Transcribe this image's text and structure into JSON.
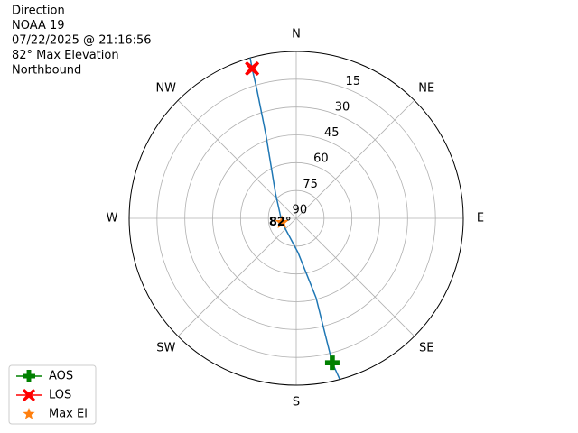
{
  "chart_data": {
    "type": "polar",
    "title_lines": [
      "Direction",
      "NOAA 19",
      "07/22/2025 @ 21:16:56",
      "82° Max Elevation",
      "Northbound"
    ],
    "thetaticks": [
      {
        "value": 0,
        "label": "N"
      },
      {
        "value": 45,
        "label": "NE"
      },
      {
        "value": 90,
        "label": "E"
      },
      {
        "value": 135,
        "label": "SE"
      },
      {
        "value": 180,
        "label": "S"
      },
      {
        "value": 225,
        "label": "SW"
      },
      {
        "value": 270,
        "label": "W"
      },
      {
        "value": 315,
        "label": "NW"
      }
    ],
    "rlim": [
      90,
      0
    ],
    "rticks": [
      15,
      30,
      45,
      60,
      75,
      90
    ],
    "grid": true,
    "legend": "lower left",
    "track": {
      "color": "#1f77b4",
      "azimuth": [
        164.9,
        166,
        166,
        177,
        254,
        320,
        340,
        343,
        343.6,
        344
      ],
      "elevation": [
        0.3,
        9.7,
        45.9,
        71.5,
        82,
        72.7,
        42.5,
        18,
        5.8,
        0
      ]
    },
    "series": [
      {
        "name": "AOS",
        "color": "green",
        "marker": "plus",
        "azimuth": [
          166
        ],
        "elevation": [
          9.7
        ]
      },
      {
        "name": "LOS",
        "color": "red",
        "marker": "x",
        "azimuth": [
          343.6
        ],
        "elevation": [
          5.8
        ]
      },
      {
        "name": "Max El",
        "color": "#ff7f0e",
        "marker": "star",
        "azimuth": [
          254
        ],
        "elevation": [
          82
        ],
        "value_labels": [
          "82°"
        ]
      }
    ]
  }
}
